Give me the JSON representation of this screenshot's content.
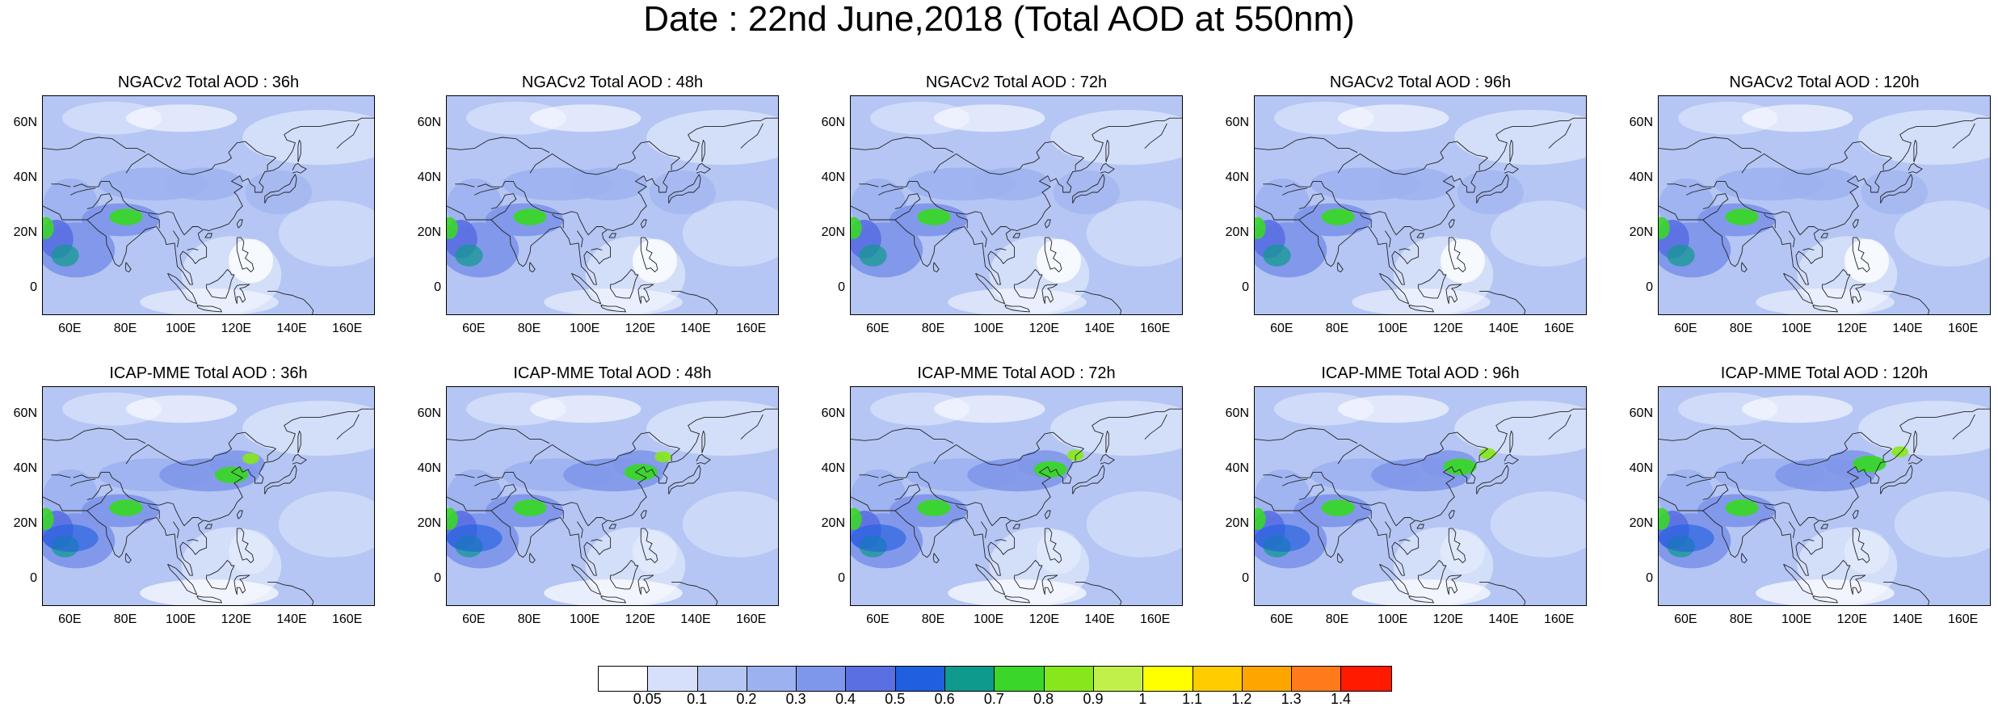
{
  "title": "Date : 22nd June,2018 (Total AOD at 550nm)",
  "y_ticks": [
    "60N",
    "40N",
    "20N",
    "0"
  ],
  "x_ticks": [
    "60E",
    "80E",
    "100E",
    "120E",
    "140E",
    "160E"
  ],
  "map_extent": {
    "lon_min": 50,
    "lon_max": 170,
    "lat_min": -10,
    "lat_max": 70
  },
  "panels": [
    {
      "model": "NGACv2",
      "title": "NGACv2 Total AOD : 36h",
      "lead": "36h"
    },
    {
      "model": "NGACv2",
      "title": "NGACv2 Total AOD : 48h",
      "lead": "48h"
    },
    {
      "model": "NGACv2",
      "title": "NGACv2 Total AOD : 72h",
      "lead": "72h"
    },
    {
      "model": "NGACv2",
      "title": "NGACv2 Total AOD : 96h",
      "lead": "96h"
    },
    {
      "model": "NGACv2",
      "title": "NGACv2 Total AOD : 120h",
      "lead": "120h"
    },
    {
      "model": "ICAP-MME",
      "title": "ICAP-MME Total AOD : 36h",
      "lead": "36h"
    },
    {
      "model": "ICAP-MME",
      "title": "ICAP-MME Total AOD : 48h",
      "lead": "48h"
    },
    {
      "model": "ICAP-MME",
      "title": "ICAP-MME Total AOD : 72h",
      "lead": "72h"
    },
    {
      "model": "ICAP-MME",
      "title": "ICAP-MME Total AOD : 96h",
      "lead": "96h"
    },
    {
      "model": "ICAP-MME",
      "title": "ICAP-MME Total AOD : 120h",
      "lead": "120h"
    }
  ],
  "colorbar": {
    "labels": [
      "0.05",
      "0.1",
      "0.2",
      "0.3",
      "0.4",
      "0.5",
      "0.6",
      "0.7",
      "0.8",
      "0.9",
      "1",
      "1.1",
      "1.2",
      "1.3",
      "1.4"
    ],
    "colors": [
      "#ffffff",
      "#d6e0fa",
      "#b5c6f4",
      "#9cb1ef",
      "#7f97ea",
      "#5a6fe2",
      "#1f5fe0",
      "#0e9a8c",
      "#3ad62a",
      "#86e81a",
      "#c2f04a",
      "#ffff00",
      "#ffcc00",
      "#ffa500",
      "#ff7a1a",
      "#ff1a00"
    ]
  }
}
